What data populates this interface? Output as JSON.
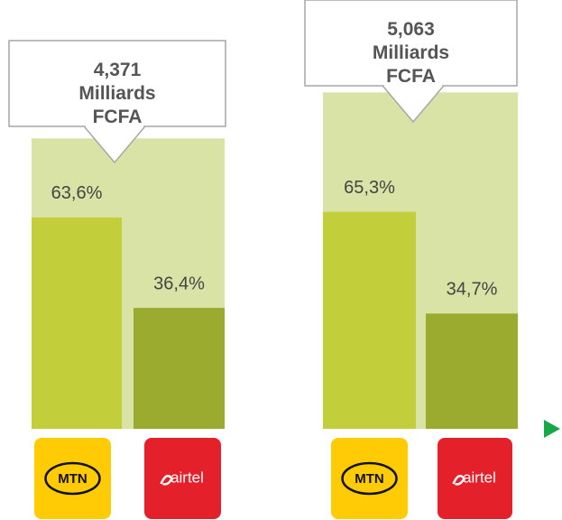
{
  "chart_data": {
    "type": "bar",
    "ylim": [
      0,
      100
    ],
    "y2lim": [
      0,
      5000
    ],
    "totals": {
      "values": [
        4371,
        5063
      ],
      "value_labels": [
        "4,371 Milliards FCFA",
        "5,063 Milliards FCFA"
      ],
      "color": "#d9e3a6",
      "axis": "y2"
    },
    "series": [
      {
        "name": "MTN",
        "color": "#c2cf3a",
        "values": [
          63.6,
          65.3
        ],
        "value_labels": [
          "63,6%",
          "65,3%"
        ]
      },
      {
        "name": "airtel",
        "color": "#9aab2f",
        "values": [
          36.4,
          34.7
        ],
        "value_labels": [
          "36,4%",
          "34,7%"
        ]
      }
    ]
  }
}
